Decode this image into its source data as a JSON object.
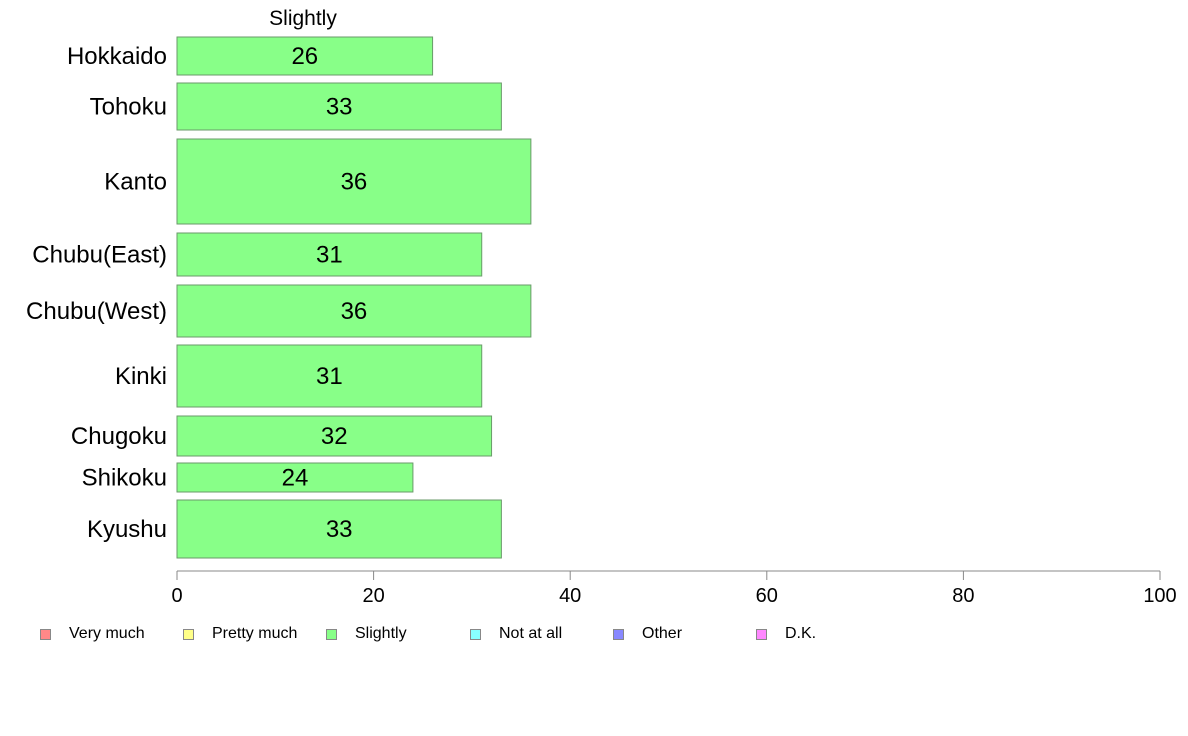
{
  "chart_data": {
    "type": "bar",
    "orientation": "horizontal",
    "title": "Slightly",
    "categories": [
      "Hokkaido",
      "Tohoku",
      "Kanto",
      "Chubu(East)",
      "Chubu(West)",
      "Kinki",
      "Chugoku",
      "Shikoku",
      "Kyushu"
    ],
    "values": [
      26,
      33,
      36,
      31,
      36,
      31,
      32,
      24,
      33
    ],
    "xlim": [
      0,
      100
    ],
    "xticks": [
      "0",
      "20",
      "40",
      "60",
      "80",
      "100"
    ],
    "xlabel": "",
    "ylabel": "",
    "grid": false,
    "bar_color": "#88ff88",
    "bar_edge_color": "#6a9a6a",
    "legend_position": "bottom",
    "legend": [
      {
        "label": "Very much",
        "color": "#ff8888"
      },
      {
        "label": "Pretty much",
        "color": "#ffff88"
      },
      {
        "label": "Slightly",
        "color": "#88ff88"
      },
      {
        "label": "Not at all",
        "color": "#88ffff"
      },
      {
        "label": "Other",
        "color": "#8888ff"
      },
      {
        "label": "D.K.",
        "color": "#ff88ff"
      }
    ]
  }
}
